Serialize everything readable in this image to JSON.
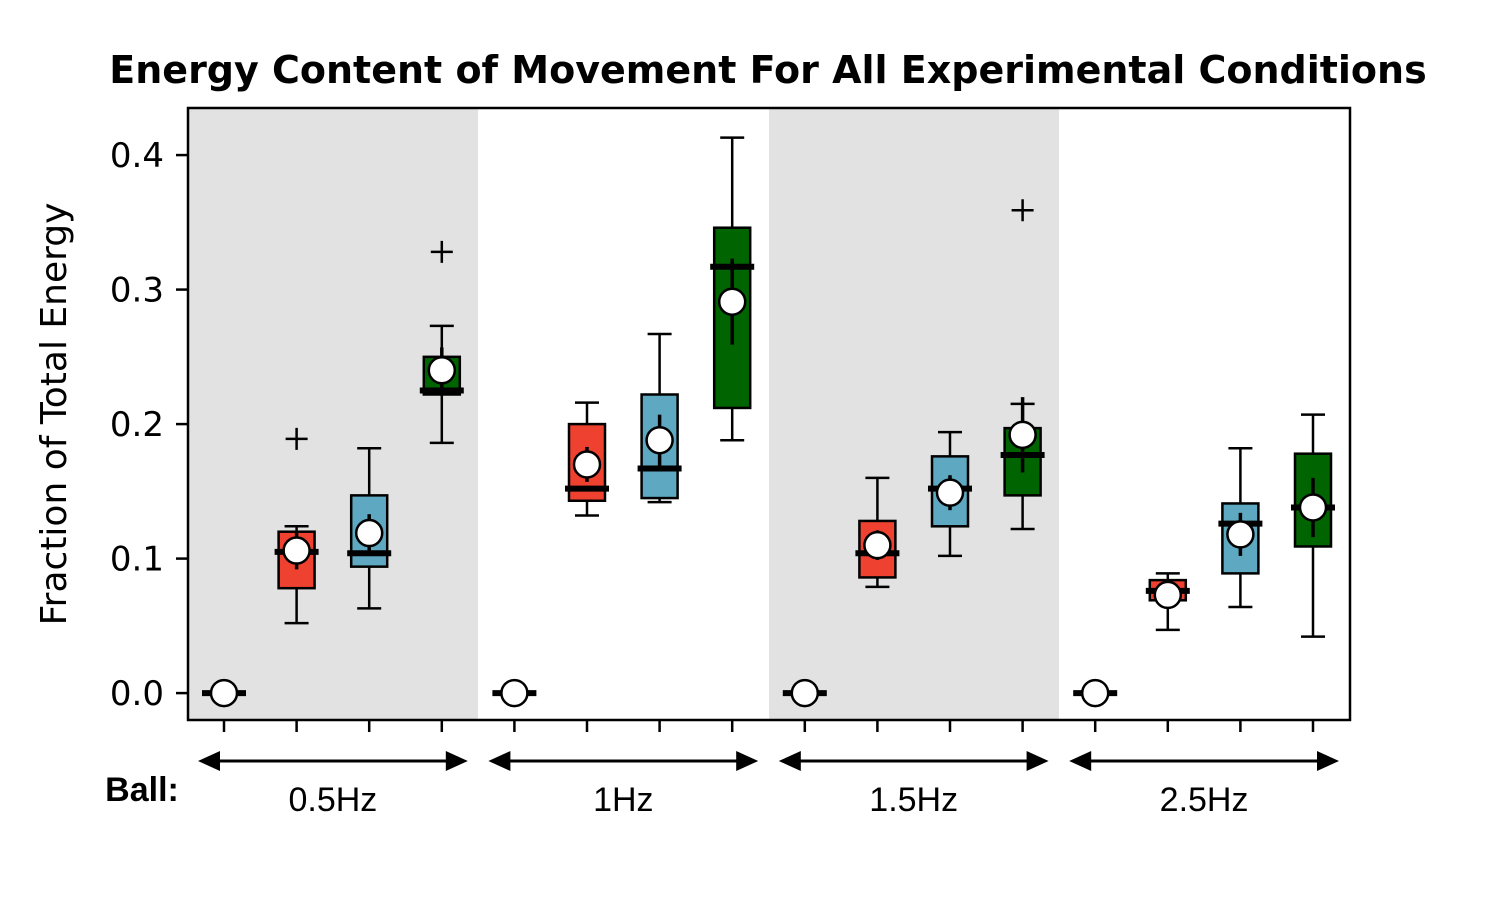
{
  "chart_data": {
    "type": "box",
    "title": "Energy Content of Movement For All Experimental Conditions",
    "xlabel": "",
    "ylabel": "Fraction of Total Energy",
    "ylim": [
      -0.02,
      0.435
    ],
    "yticks": [
      0.0,
      0.1,
      0.2,
      0.3,
      0.4
    ],
    "ytick_labels": [
      "0.0",
      "0.1",
      "0.2",
      "0.3",
      "0.4"
    ],
    "group_axis_label": "Ball:",
    "groups": [
      "0.5Hz",
      "1Hz",
      "1.5Hz",
      "2.5Hz"
    ],
    "shaded_groups": [
      true,
      false,
      true,
      false
    ],
    "colors": {
      "shade": "#e2e2e2",
      "condition_1": "#ffffff",
      "condition_2": "#ef4130",
      "condition_3": "#5ea9c1",
      "condition_4": "#006400"
    },
    "boxes": [
      {
        "group": "0.5Hz",
        "condition": 1,
        "whislo": 0.0,
        "q1": 0.0,
        "med": 0.0,
        "q3": 0.0,
        "whishi": 0.0,
        "mean": 0.0,
        "mean_err": 0.0,
        "outliers": []
      },
      {
        "group": "0.5Hz",
        "condition": 2,
        "whislo": 0.052,
        "q1": 0.078,
        "med": 0.105,
        "q3": 0.12,
        "whishi": 0.124,
        "mean": 0.106,
        "mean_err": 0.014,
        "outliers": [
          0.189
        ]
      },
      {
        "group": "0.5Hz",
        "condition": 3,
        "whislo": 0.063,
        "q1": 0.094,
        "med": 0.104,
        "q3": 0.147,
        "whishi": 0.182,
        "mean": 0.119,
        "mean_err": 0.014,
        "outliers": []
      },
      {
        "group": "0.5Hz",
        "condition": 4,
        "whislo": 0.186,
        "q1": 0.222,
        "med": 0.225,
        "q3": 0.25,
        "whishi": 0.273,
        "mean": 0.24,
        "mean_err": 0.017,
        "outliers": [
          0.328
        ]
      },
      {
        "group": "1Hz",
        "condition": 1,
        "whislo": 0.0,
        "q1": 0.0,
        "med": 0.0,
        "q3": 0.0,
        "whishi": 0.0,
        "mean": 0.0,
        "mean_err": 0.0,
        "outliers": []
      },
      {
        "group": "1Hz",
        "condition": 2,
        "whislo": 0.132,
        "q1": 0.143,
        "med": 0.152,
        "q3": 0.2,
        "whishi": 0.216,
        "mean": 0.17,
        "mean_err": 0.013,
        "outliers": []
      },
      {
        "group": "1Hz",
        "condition": 3,
        "whislo": 0.142,
        "q1": 0.145,
        "med": 0.167,
        "q3": 0.222,
        "whishi": 0.267,
        "mean": 0.188,
        "mean_err": 0.019,
        "outliers": []
      },
      {
        "group": "1Hz",
        "condition": 4,
        "whislo": 0.188,
        "q1": 0.212,
        "med": 0.317,
        "q3": 0.346,
        "whishi": 0.413,
        "mean": 0.291,
        "mean_err": 0.032,
        "outliers": []
      },
      {
        "group": "1.5Hz",
        "condition": 1,
        "whislo": 0.0,
        "q1": 0.0,
        "med": 0.0,
        "q3": 0.0,
        "whishi": 0.0,
        "mean": 0.0,
        "mean_err": 0.0,
        "outliers": []
      },
      {
        "group": "1.5Hz",
        "condition": 2,
        "whislo": 0.079,
        "q1": 0.086,
        "med": 0.104,
        "q3": 0.128,
        "whishi": 0.16,
        "mean": 0.11,
        "mean_err": 0.011,
        "outliers": []
      },
      {
        "group": "1.5Hz",
        "condition": 3,
        "whislo": 0.102,
        "q1": 0.124,
        "med": 0.152,
        "q3": 0.176,
        "whishi": 0.194,
        "mean": 0.149,
        "mean_err": 0.013,
        "outliers": []
      },
      {
        "group": "1.5Hz",
        "condition": 4,
        "whislo": 0.122,
        "q1": 0.147,
        "med": 0.177,
        "q3": 0.197,
        "whishi": 0.215,
        "mean": 0.192,
        "mean_err": 0.028,
        "outliers": [
          0.359
        ]
      },
      {
        "group": "2.5Hz",
        "condition": 1,
        "whislo": 0.0,
        "q1": 0.0,
        "med": 0.0,
        "q3": 0.0,
        "whishi": 0.0,
        "mean": 0.0,
        "mean_err": 0.0,
        "outliers": []
      },
      {
        "group": "2.5Hz",
        "condition": 2,
        "whislo": 0.047,
        "q1": 0.069,
        "med": 0.076,
        "q3": 0.084,
        "whishi": 0.089,
        "mean": 0.073,
        "mean_err": 0.008,
        "outliers": []
      },
      {
        "group": "2.5Hz",
        "condition": 3,
        "whislo": 0.064,
        "q1": 0.089,
        "med": 0.126,
        "q3": 0.141,
        "whishi": 0.182,
        "mean": 0.118,
        "mean_err": 0.016,
        "outliers": []
      },
      {
        "group": "2.5Hz",
        "condition": 4,
        "whislo": 0.042,
        "q1": 0.109,
        "med": 0.138,
        "q3": 0.178,
        "whishi": 0.207,
        "mean": 0.138,
        "mean_err": 0.022,
        "outliers": []
      }
    ]
  }
}
